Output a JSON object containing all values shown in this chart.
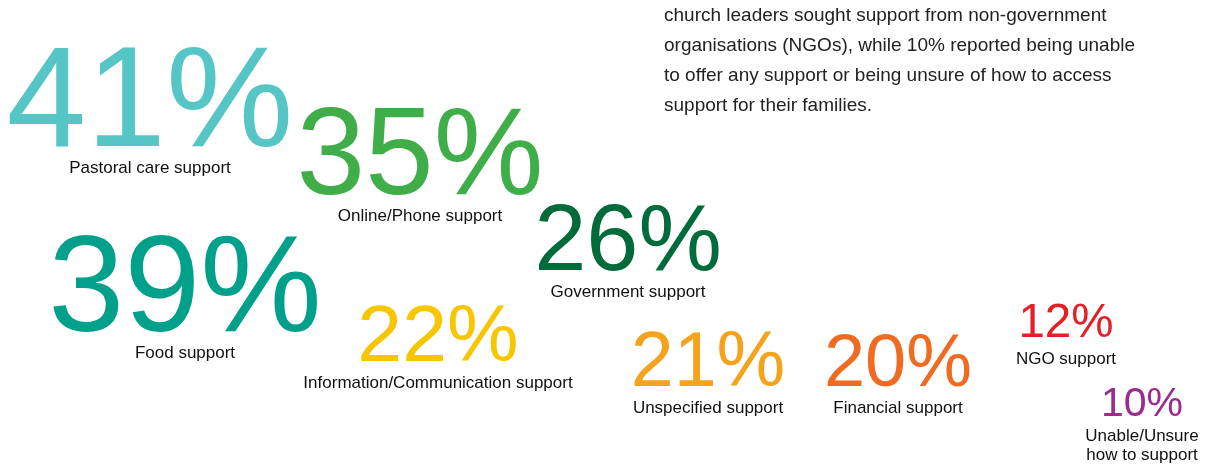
{
  "chart_data": {
    "type": "other",
    "categories": [
      "Pastoral care support",
      "Online/Phone support",
      "Food support",
      "Government support",
      "Information/Communication support",
      "Unspecified support",
      "Financial support",
      "NGO support",
      "Unable/Unsure\nhow to support"
    ],
    "values": [
      41,
      35,
      39,
      26,
      22,
      21,
      20,
      12,
      10
    ],
    "value_labels": [
      "41%",
      "35%",
      "39%",
      "26%",
      "22%",
      "21%",
      "20%",
      "12%",
      "10%"
    ],
    "colors": [
      "#56c5c5",
      "#3fae49",
      "#00a08a",
      "#006b3a",
      "#f7c600",
      "#f5a21c",
      "#ef6b22",
      "#e32027",
      "#9b2b8e"
    ],
    "annotations": [
      "church leaders sought support from non-government",
      "organisations (NGOs), while 10% reported being unable",
      "to offer any support or being unsure of how to access",
      "support for their families."
    ]
  }
}
